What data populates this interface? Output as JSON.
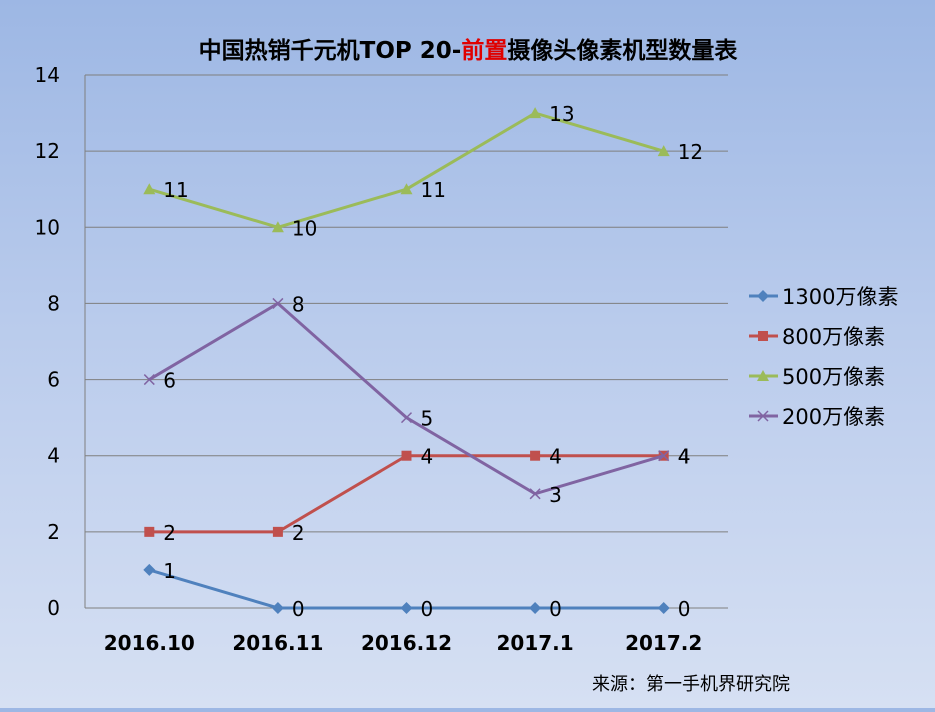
{
  "chart_data": {
    "type": "line",
    "title_parts": [
      {
        "text": "中国热销千元机TOP 20-",
        "color": "#000000"
      },
      {
        "text": "前置",
        "color": "#e00000"
      },
      {
        "text": "摄像头像素机型数量表",
        "color": "#000000"
      }
    ],
    "categories": [
      "2016.10",
      "2016.11",
      "2016.12",
      "2017.1",
      "2017.2"
    ],
    "ylim": [
      0,
      14
    ],
    "yticks": [
      0,
      2,
      4,
      6,
      8,
      10,
      12,
      14
    ],
    "grid": true,
    "legend_position": "right",
    "series": [
      {
        "name": "1300万像素",
        "values": [
          1,
          0,
          0,
          0,
          0
        ],
        "color": "#4f81bd",
        "marker": "diamond"
      },
      {
        "name": "800万像素",
        "values": [
          2,
          2,
          4,
          4,
          4
        ],
        "color": "#c0504d",
        "marker": "square"
      },
      {
        "name": "500万像素",
        "values": [
          11,
          10,
          11,
          13,
          12
        ],
        "color": "#9bbb59",
        "marker": "triangle"
      },
      {
        "name": "200万像素",
        "values": [
          6,
          8,
          5,
          3,
          4
        ],
        "color": "#8064a2",
        "marker": "x"
      }
    ],
    "source": "来源：第一手机界研究院"
  }
}
